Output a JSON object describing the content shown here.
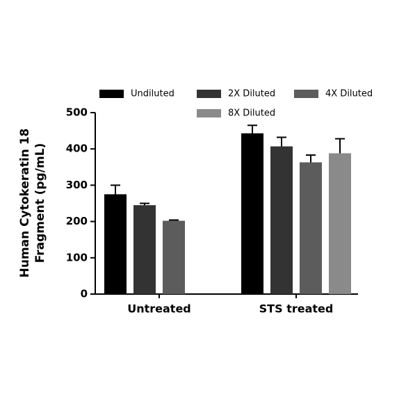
{
  "chart_data": {
    "type": "bar",
    "y_label": [
      "Human Cytokeratin 18",
      "Fragment (pg/mL)"
    ],
    "categories": [
      "Untreated",
      "STS treated"
    ],
    "series": [
      {
        "name": "Undiluted",
        "color": "#000000",
        "values": [
          275,
          443
        ],
        "errors": [
          25,
          22
        ]
      },
      {
        "name": "2X Diluted",
        "color": "#333333",
        "values": [
          245,
          407
        ],
        "errors": [
          5,
          25
        ]
      },
      {
        "name": "4X Diluted",
        "color": "#5c5c5c",
        "values": [
          202,
          363
        ],
        "errors": [
          2,
          20
        ]
      },
      {
        "name": "8X Diluted",
        "color": "#8a8a8a",
        "values": [
          null,
          388
        ],
        "errors": [
          null,
          40
        ]
      }
    ],
    "ylim": [
      0,
      500
    ],
    "yticks": [
      0,
      100,
      200,
      300,
      400,
      500
    ],
    "grid": false
  }
}
